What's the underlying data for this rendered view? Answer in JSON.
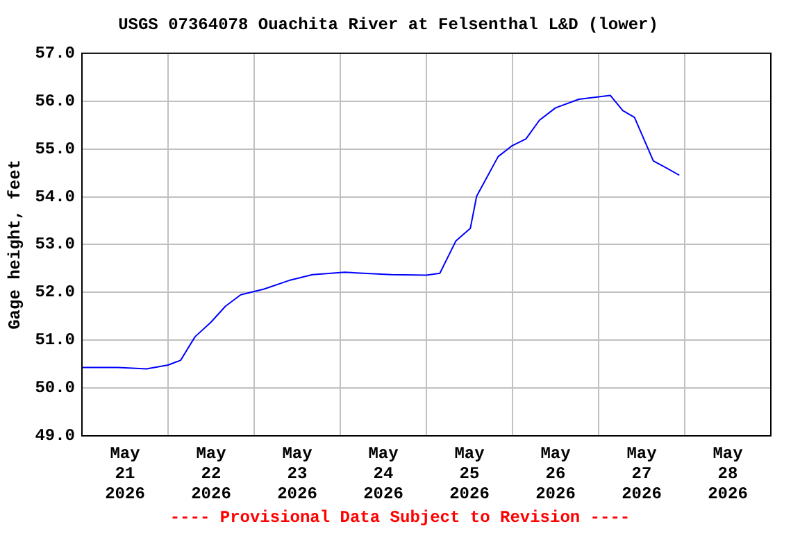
{
  "chart_data": {
    "type": "line",
    "title": "USGS 07364078 Ouachita River at Felsenthal L&D (lower)",
    "ylabel": "Gage height, feet",
    "annotations": [
      "---- Provisional Data Subject to Revision ----"
    ],
    "x": [
      "2026-05-21T00:00",
      "2026-05-21T10:00",
      "2026-05-21T18:00",
      "2026-05-22T00:00",
      "2026-05-22T03:30",
      "2026-05-22T07:30",
      "2026-05-22T12:00",
      "2026-05-22T16:00",
      "2026-05-22T20:15",
      "2026-05-23T02:45",
      "2026-05-23T09:45",
      "2026-05-23T16:15",
      "2026-05-24T01:15",
      "2026-05-24T14:15",
      "2026-05-25T00:00",
      "2026-05-25T03:45",
      "2026-05-25T08:15",
      "2026-05-25T12:15",
      "2026-05-25T14:00",
      "2026-05-25T20:00",
      "2026-05-25T23:45",
      "2026-05-26T03:45",
      "2026-05-26T07:30",
      "2026-05-26T12:00",
      "2026-05-26T18:30",
      "2026-05-27T03:15",
      "2026-05-27T06:45",
      "2026-05-27T10:00",
      "2026-05-27T15:15",
      "2026-05-27T18:30",
      "2026-05-27T22:30"
    ],
    "series": [
      {
        "color": "#0000ff",
        "values": [
          50.43,
          50.43,
          50.4,
          50.48,
          50.58,
          51.07,
          51.38,
          51.71,
          51.95,
          52.07,
          52.25,
          52.37,
          52.42,
          52.37,
          52.36,
          52.4,
          53.08,
          53.34,
          54.01,
          54.84,
          55.06,
          55.21,
          55.6,
          55.86,
          56.04,
          56.12,
          55.8,
          55.66,
          54.75,
          54.62,
          54.45
        ]
      }
    ],
    "xlim": [
      "2026-05-21T00:00",
      "2026-05-29T00:00"
    ],
    "xticks": [
      {
        "value": "2026-05-21T00:00",
        "label": null
      },
      {
        "value": "2026-05-21T12:00",
        "label": "May 21 2026"
      },
      {
        "value": "2026-05-22T00:00",
        "label": null
      },
      {
        "value": "2026-05-22T12:00",
        "label": "May 22 2026"
      },
      {
        "value": "2026-05-23T00:00",
        "label": null
      },
      {
        "value": "2026-05-23T12:00",
        "label": "May 23 2026"
      },
      {
        "value": "2026-05-24T00:00",
        "label": null
      },
      {
        "value": "2026-05-24T12:00",
        "label": "May 24 2026"
      },
      {
        "value": "2026-05-25T00:00",
        "label": null
      },
      {
        "value": "2026-05-25T12:00",
        "label": "May 25 2026"
      },
      {
        "value": "2026-05-26T00:00",
        "label": null
      },
      {
        "value": "2026-05-26T12:00",
        "label": "May 26 2026"
      },
      {
        "value": "2026-05-27T00:00",
        "label": null
      },
      {
        "value": "2026-05-27T12:00",
        "label": "May 27 2026"
      },
      {
        "value": "2026-05-28T00:00",
        "label": null
      },
      {
        "value": "2026-05-28T12:00",
        "label": "May 28 2026"
      },
      {
        "value": "2026-05-29T00:00",
        "label": null
      }
    ],
    "ylim": [
      49,
      57
    ],
    "yticks": [
      {
        "value": 49,
        "label": "49.0"
      },
      {
        "value": 50,
        "label": "50.0"
      },
      {
        "value": 51,
        "label": "51.0"
      },
      {
        "value": 52,
        "label": "52.0"
      },
      {
        "value": 53,
        "label": "53.0"
      },
      {
        "value": 54,
        "label": "54.0"
      },
      {
        "value": 55,
        "label": "55.0"
      },
      {
        "value": 56,
        "label": "56.0"
      },
      {
        "value": 57,
        "label": "57.0"
      }
    ],
    "grid": true,
    "legend": false,
    "marker": "none",
    "line_style": "solid"
  }
}
